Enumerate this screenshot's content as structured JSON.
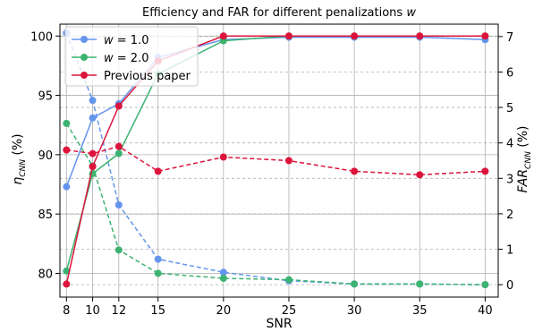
{
  "chart_data": {
    "type": "line",
    "title": "Efficiency and FAR for different penalizations w",
    "title_parts": {
      "text": "Efficiency and FAR for different penalizations ",
      "italic": "w"
    },
    "xlabel": "SNR",
    "ylabel_left": {
      "base": "η",
      "sub": "CNN",
      "unit": " (%)"
    },
    "ylabel_right": {
      "base": "FAR",
      "sub": "CNN",
      "unit": " (%)"
    },
    "x_categories": [
      8,
      10,
      12,
      15,
      20,
      25,
      30,
      35,
      40
    ],
    "x_tick_labels": [
      "8",
      "10",
      "12",
      "15",
      "20",
      "25",
      "30",
      "35",
      "40"
    ],
    "ylim_left": [
      78,
      101
    ],
    "yticks_left": [
      80,
      85,
      90,
      95,
      100
    ],
    "ylim_right": [
      -0.35,
      7.35
    ],
    "yticks_right": [
      0,
      1,
      2,
      3,
      4,
      5,
      6,
      7
    ],
    "grid": true,
    "legend_position": "top-left",
    "series": [
      {
        "name": "w = 1.0",
        "legend_label": {
          "var": "w",
          "rest": " = 1.0"
        },
        "color": "#6495ED",
        "efficiency": [
          87.3,
          93.1,
          94.3,
          98.2,
          99.7,
          99.9,
          99.9,
          99.9,
          99.7
        ],
        "far": [
          7.1,
          5.2,
          2.25,
          0.72,
          0.35,
          0.11,
          0.02,
          0.02,
          0.0
        ]
      },
      {
        "name": "w = 2.0",
        "legend_label": {
          "var": "w",
          "rest": " = 2.0"
        },
        "color": "#3CB371",
        "efficiency": [
          80.2,
          88.4,
          90.1,
          96.8,
          99.6,
          100.0,
          100.0,
          100.0,
          100.0
        ],
        "far": [
          4.55,
          3.35,
          0.98,
          0.32,
          0.18,
          0.14,
          0.02,
          0.02,
          0.0
        ]
      },
      {
        "name": "Previous paper",
        "legend_label": {
          "var": "",
          "rest": "Previous paper"
        },
        "color": "#DC143C",
        "efficiency": [
          79.1,
          89.0,
          94.1,
          97.9,
          100.0,
          100.0,
          100.0,
          100.0,
          100.0
        ],
        "far": [
          3.8,
          3.7,
          3.9,
          3.2,
          3.6,
          3.5,
          3.2,
          3.1,
          3.2
        ]
      }
    ]
  }
}
